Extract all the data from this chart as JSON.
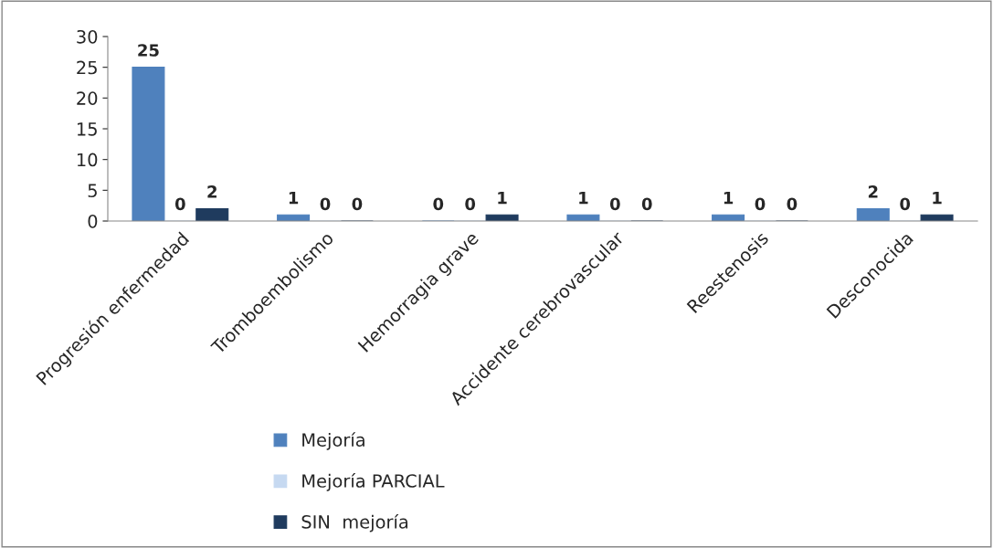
{
  "chart_data": {
    "type": "bar",
    "categories": [
      "Progresión enfermedad",
      "Tromboembolismo",
      "Hemorragia grave",
      "Accidente cerebrovascular",
      "Reestenosis",
      "Desconocida"
    ],
    "series": [
      {
        "name": "Mejoría",
        "color": "#4f81bd",
        "values": [
          25,
          1,
          0,
          1,
          1,
          2
        ]
      },
      {
        "name": "Mejoría PARCIAL",
        "color": "#c6d9f1",
        "values": [
          0,
          0,
          0,
          0,
          0,
          0
        ]
      },
      {
        "name": "SIN  mejoría",
        "color": "#1f3b5e",
        "values": [
          2,
          0,
          1,
          0,
          0,
          1
        ]
      }
    ],
    "ylim": [
      0,
      30
    ],
    "yticks": [
      0,
      5,
      10,
      15,
      20,
      25,
      30
    ],
    "data_labels": true,
    "grid": false,
    "legend": "bottom"
  }
}
